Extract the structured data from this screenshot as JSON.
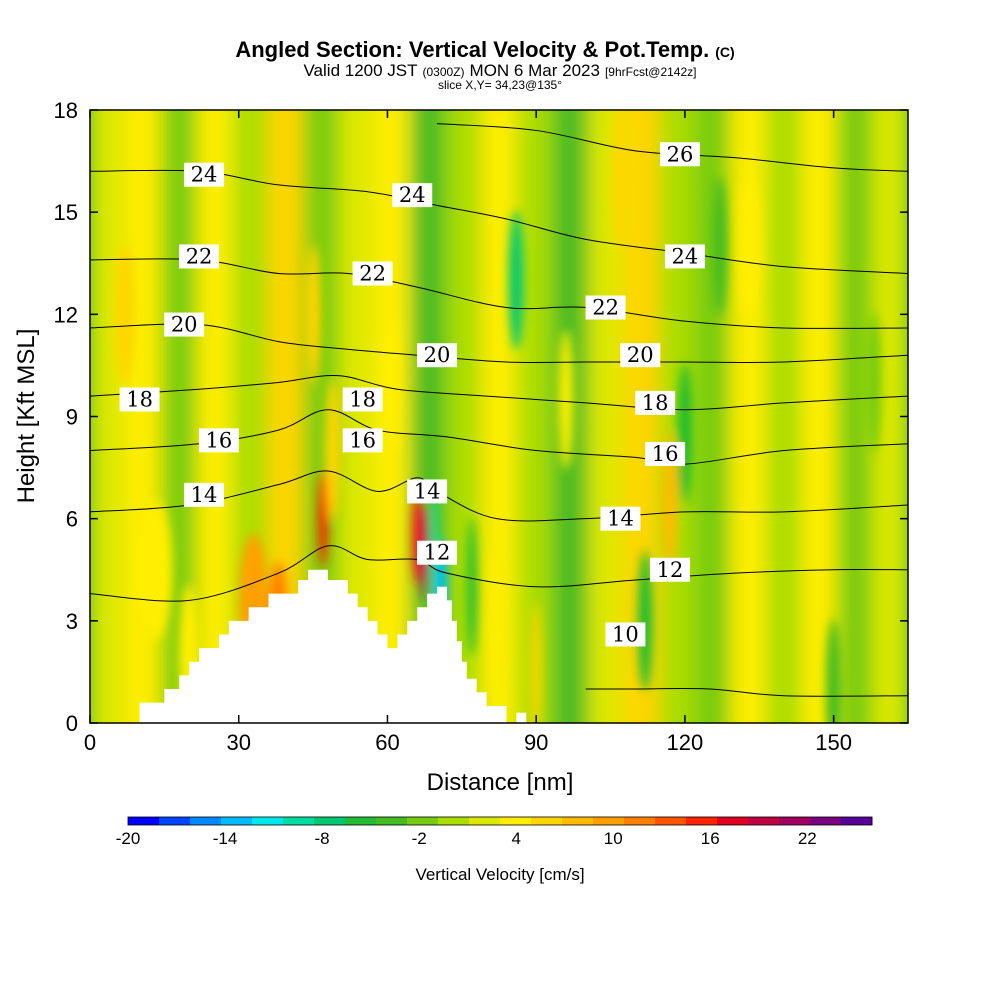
{
  "chart_data": {
    "type": "heatmap",
    "title": "Angled Section: Vertical Velocity & Pot.Temp.",
    "title_unit": "(C)",
    "subtitle_valid": "Valid 1200 JST",
    "subtitle_utc": "(0300Z)",
    "subtitle_date": "MON 6 Mar 2023",
    "subtitle_fcst": "[9hrFcst@2142z]",
    "slice_label": "slice X,Y= 34,23@135°",
    "xlabel": "Distance [nm]",
    "ylabel": "Height [Kft MSL]",
    "xlim": [
      0,
      165
    ],
    "ylim": [
      0,
      18
    ],
    "x_ticks": [
      0,
      30,
      60,
      90,
      120,
      150
    ],
    "y_ticks": [
      0,
      3,
      6,
      9,
      12,
      15,
      18
    ],
    "colorbar": {
      "label": "Vertical Velocity [cm/s]",
      "range": [
        -20,
        26
      ],
      "ticks": [
        -20,
        -14,
        -8,
        -2,
        4,
        10,
        16,
        22
      ],
      "colors": [
        "#0000ff",
        "#0044ff",
        "#0088ff",
        "#00bbff",
        "#00e8ee",
        "#00dda0",
        "#00c870",
        "#22bb33",
        "#44bb22",
        "#77cc11",
        "#aadd00",
        "#dde800",
        "#ffee00",
        "#ffd500",
        "#ffbb00",
        "#ffa000",
        "#ff7f00",
        "#ff5500",
        "#ff2200",
        "#e00020",
        "#c00040",
        "#a00060",
        "#7a0080",
        "#550099"
      ]
    },
    "terrain": [
      [
        0,
        0
      ],
      [
        10,
        0
      ],
      [
        10,
        0.6
      ],
      [
        15,
        0.6
      ],
      [
        15,
        1.0
      ],
      [
        18,
        1.0
      ],
      [
        18,
        1.4
      ],
      [
        20,
        1.4
      ],
      [
        20,
        1.8
      ],
      [
        22,
        1.8
      ],
      [
        22,
        2.2
      ],
      [
        26,
        2.2
      ],
      [
        26,
        2.6
      ],
      [
        28,
        2.6
      ],
      [
        28,
        3.0
      ],
      [
        32,
        3.0
      ],
      [
        32,
        3.4
      ],
      [
        36,
        3.4
      ],
      [
        36,
        3.8
      ],
      [
        42,
        3.8
      ],
      [
        42,
        4.2
      ],
      [
        44,
        4.2
      ],
      [
        44,
        4.5
      ],
      [
        48,
        4.5
      ],
      [
        48,
        4.2
      ],
      [
        52,
        4.2
      ],
      [
        52,
        3.8
      ],
      [
        54,
        3.8
      ],
      [
        54,
        3.4
      ],
      [
        56,
        3.4
      ],
      [
        56,
        3.0
      ],
      [
        58,
        3.0
      ],
      [
        58,
        2.6
      ],
      [
        60,
        2.6
      ],
      [
        60,
        2.2
      ],
      [
        62,
        2.2
      ],
      [
        62,
        2.6
      ],
      [
        64,
        2.6
      ],
      [
        64,
        3.0
      ],
      [
        66,
        3.0
      ],
      [
        66,
        3.4
      ],
      [
        68,
        3.4
      ],
      [
        68,
        3.8
      ],
      [
        70,
        3.8
      ],
      [
        70,
        4.0
      ],
      [
        72,
        4.0
      ],
      [
        72,
        3.6
      ],
      [
        73,
        3.6
      ],
      [
        73,
        3.0
      ],
      [
        74,
        3.0
      ],
      [
        74,
        2.4
      ],
      [
        75,
        2.4
      ],
      [
        75,
        1.8
      ],
      [
        76,
        1.8
      ],
      [
        76,
        1.3
      ],
      [
        78,
        1.3
      ],
      [
        78,
        0.9
      ],
      [
        80,
        0.9
      ],
      [
        80,
        0.5
      ],
      [
        84,
        0.5
      ],
      [
        84,
        0.0
      ],
      [
        86,
        0.0
      ],
      [
        86,
        0.3
      ],
      [
        88,
        0.3
      ],
      [
        88,
        0.0
      ],
      [
        165,
        0.0
      ]
    ],
    "vertical_velocity_features": [
      {
        "x": 7,
        "y": 12.0,
        "w": 4.0,
        "value": 6
      },
      {
        "x": 13,
        "y": 4.5,
        "w": 7.0,
        "value": 4
      },
      {
        "x": 20,
        "y": 2.0,
        "w": 4.0,
        "value": 4
      },
      {
        "x": 33,
        "y": 3.5,
        "w": 6.0,
        "value": 10
      },
      {
        "x": 38,
        "y": 2.7,
        "w": 4.0,
        "value": 12
      },
      {
        "x": 47,
        "y": 6.0,
        "w": 2.0,
        "value": 16
      },
      {
        "x": 49,
        "y": 8.0,
        "w": 3.0,
        "value": 6
      },
      {
        "x": 45,
        "y": 12.0,
        "w": 3.0,
        "value": 6
      },
      {
        "x": 61,
        "y": 10.0,
        "w": 3.0,
        "value": 4
      },
      {
        "x": 66,
        "y": 5.5,
        "w": 2.0,
        "value": 16
      },
      {
        "x": 67.5,
        "y": 5.0,
        "w": 1.5,
        "value": 22
      },
      {
        "x": 69.5,
        "y": 5.0,
        "w": 1.5,
        "value": -10
      },
      {
        "x": 71,
        "y": 4.0,
        "w": 2.0,
        "value": -14
      },
      {
        "x": 77,
        "y": 4.0,
        "w": 2.0,
        "value": -6
      },
      {
        "x": 82,
        "y": 3.0,
        "w": 2.0,
        "value": 4
      },
      {
        "x": 86,
        "y": 13.0,
        "w": 3.0,
        "value": -8
      },
      {
        "x": 90,
        "y": 1.5,
        "w": 2.0,
        "value": 6
      },
      {
        "x": 96,
        "y": 9.5,
        "w": 3.0,
        "value": 4
      },
      {
        "x": 107,
        "y": 16.0,
        "w": 3.0,
        "value": 6
      },
      {
        "x": 112,
        "y": 3.0,
        "w": 3.0,
        "value": -6
      },
      {
        "x": 117,
        "y": 6.5,
        "w": 3.0,
        "value": 8
      },
      {
        "x": 120,
        "y": 8.5,
        "w": 3.0,
        "value": -6
      },
      {
        "x": 127,
        "y": 14.0,
        "w": 3.0,
        "value": -4
      },
      {
        "x": 133,
        "y": 14.0,
        "w": 4.0,
        "value": 4
      },
      {
        "x": 150,
        "y": 1.0,
        "w": 3.0,
        "value": -4
      },
      {
        "x": 158,
        "y": 10.0,
        "w": 3.0,
        "value": -2
      }
    ],
    "potential_temperature_isotherms": [
      {
        "value": 10,
        "points": [
          [
            100,
            1.0
          ],
          [
            110,
            1.0
          ],
          [
            125,
            1.0
          ],
          [
            140,
            0.8
          ],
          [
            165,
            0.8
          ]
        ],
        "label_at": [
          108,
          2.6
        ]
      },
      {
        "value": 12,
        "points": [
          [
            0,
            3.8
          ],
          [
            20,
            3.6
          ],
          [
            38,
            4.4
          ],
          [
            48,
            5.2
          ],
          [
            56,
            4.8
          ],
          [
            66,
            4.8
          ],
          [
            72,
            4.4
          ],
          [
            90,
            4.0
          ],
          [
            110,
            4.2
          ],
          [
            130,
            4.4
          ],
          [
            150,
            4.5
          ],
          [
            165,
            4.5
          ]
        ],
        "label_at": [
          117,
          4.5
        ]
      },
      {
        "value": 14,
        "points": [
          [
            0,
            6.2
          ],
          [
            20,
            6.4
          ],
          [
            38,
            7.0
          ],
          [
            48,
            7.4
          ],
          [
            58,
            6.8
          ],
          [
            66,
            7.2
          ],
          [
            70,
            6.8
          ],
          [
            82,
            6.0
          ],
          [
            100,
            6.0
          ],
          [
            120,
            6.2
          ],
          [
            140,
            6.2
          ],
          [
            165,
            6.4
          ]
        ],
        "label_at": [
          107,
          6.0
        ]
      },
      {
        "value": 16,
        "points": [
          [
            0,
            8.0
          ],
          [
            22,
            8.2
          ],
          [
            38,
            8.6
          ],
          [
            48,
            9.2
          ],
          [
            58,
            8.6
          ],
          [
            72,
            8.4
          ],
          [
            90,
            8.0
          ],
          [
            110,
            7.8
          ],
          [
            120,
            7.6
          ],
          [
            140,
            8.0
          ],
          [
            165,
            8.2
          ]
        ],
        "label_at": [
          116,
          7.9
        ]
      },
      {
        "value": 18,
        "points": [
          [
            0,
            9.6
          ],
          [
            22,
            9.8
          ],
          [
            38,
            10.0
          ],
          [
            50,
            10.2
          ],
          [
            62,
            9.8
          ],
          [
            80,
            9.6
          ],
          [
            100,
            9.4
          ],
          [
            120,
            9.2
          ],
          [
            140,
            9.4
          ],
          [
            165,
            9.6
          ]
        ],
        "label_at": [
          114,
          9.4
        ]
      },
      {
        "value": 20,
        "points": [
          [
            0,
            11.6
          ],
          [
            22,
            11.7
          ],
          [
            38,
            11.2
          ],
          [
            50,
            11.0
          ],
          [
            66,
            10.8
          ],
          [
            84,
            10.6
          ],
          [
            100,
            10.6
          ],
          [
            120,
            10.6
          ],
          [
            140,
            10.6
          ],
          [
            165,
            10.8
          ]
        ],
        "label_at": [
          111,
          10.8
        ]
      },
      {
        "value": 22,
        "points": [
          [
            0,
            13.6
          ],
          [
            22,
            13.6
          ],
          [
            38,
            13.2
          ],
          [
            52,
            13.2
          ],
          [
            66,
            12.8
          ],
          [
            84,
            12.2
          ],
          [
            100,
            12.2
          ],
          [
            120,
            11.8
          ],
          [
            140,
            11.6
          ],
          [
            165,
            11.6
          ]
        ],
        "label_at": [
          104,
          12.2
        ]
      },
      {
        "value": 24,
        "points": [
          [
            0,
            16.2
          ],
          [
            22,
            16.2
          ],
          [
            38,
            15.8
          ],
          [
            56,
            15.6
          ],
          [
            70,
            15.2
          ],
          [
            84,
            14.8
          ],
          [
            100,
            14.2
          ],
          [
            120,
            13.8
          ],
          [
            140,
            13.4
          ],
          [
            165,
            13.2
          ]
        ],
        "label_at": [
          120,
          13.7
        ]
      },
      {
        "value": 26,
        "points": [
          [
            70,
            17.6
          ],
          [
            90,
            17.4
          ],
          [
            110,
            16.8
          ],
          [
            130,
            16.6
          ],
          [
            150,
            16.3
          ],
          [
            165,
            16.2
          ]
        ],
        "label_at": [
          119,
          16.7
        ]
      }
    ],
    "extra_contour_labels": [
      {
        "value": 24,
        "at": [
          23,
          16.1
        ]
      },
      {
        "value": 22,
        "at": [
          22,
          13.7
        ]
      },
      {
        "value": 20,
        "at": [
          19,
          11.7
        ]
      },
      {
        "value": 18,
        "at": [
          10,
          9.5
        ]
      },
      {
        "value": 16,
        "at": [
          26,
          8.3
        ]
      },
      {
        "value": 14,
        "at": [
          23,
          6.7
        ]
      },
      {
        "value": 24,
        "at": [
          65,
          15.5
        ]
      },
      {
        "value": 22,
        "at": [
          57,
          13.2
        ]
      },
      {
        "value": 20,
        "at": [
          70,
          10.8
        ]
      },
      {
        "value": 18,
        "at": [
          55,
          9.5
        ]
      },
      {
        "value": 16,
        "at": [
          55,
          8.3
        ]
      },
      {
        "value": 14,
        "at": [
          68,
          6.8
        ]
      },
      {
        "value": 12,
        "at": [
          70,
          5.0
        ]
      }
    ]
  }
}
